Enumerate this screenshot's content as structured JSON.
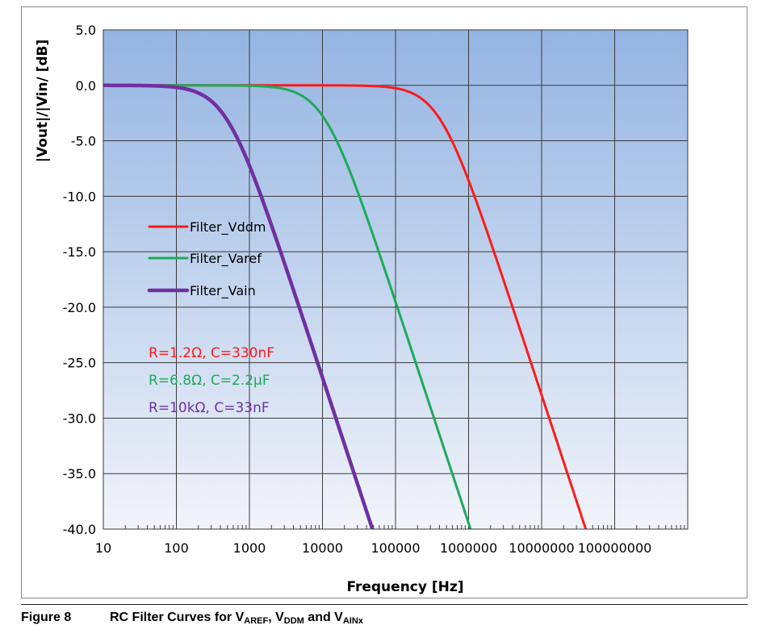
{
  "chart_data": {
    "type": "line",
    "xscale": "log",
    "xlabel": "Frequency [Hz]",
    "ylabel": "|Vout|/|Vin/ [dB]",
    "xlim": [
      10,
      1000000000
    ],
    "ylim": [
      -40,
      5
    ],
    "x_ticks": [
      10,
      100,
      1000,
      10000,
      100000,
      1000000,
      10000000,
      100000000
    ],
    "x_tick_labels": [
      "10",
      "100",
      "1000",
      "10000",
      "100000",
      "1000000",
      "10000000",
      "100000000"
    ],
    "y_ticks": [
      5,
      0,
      -5,
      -10,
      -15,
      -20,
      -25,
      -30,
      -35,
      -40
    ],
    "y_tick_labels": [
      "5.0",
      "0.0",
      "-5.0",
      "-10.0",
      "-15.0",
      "-20.0",
      "-25.0",
      "-30.0",
      "-35.0",
      "-40.0"
    ],
    "grid": true,
    "legend_position": "middle-left",
    "series": [
      {
        "name": "Filter_Vddm",
        "color": "#ff1a1a",
        "line_weight": "medium",
        "model": "rc_lowpass",
        "cutoff_hz": 401900,
        "x": [
          10,
          1000,
          100000,
          401900,
          1000000,
          10000000,
          40000000
        ],
        "values": [
          0.0,
          0.0,
          -0.25,
          -3.0,
          -8.6,
          -27.9,
          -40.0
        ]
      },
      {
        "name": "Filter_Varef",
        "color": "#1daa5a",
        "line_weight": "medium",
        "model": "rc_lowpass",
        "cutoff_hz": 10640,
        "x": [
          10,
          1000,
          10640,
          100000,
          1000000,
          1070000
        ],
        "values": [
          0.0,
          -0.04,
          -3.0,
          -19.5,
          -39.5,
          -40.0
        ]
      },
      {
        "name": "Filter_Vain",
        "color": "#7030a0",
        "line_weight": "thick",
        "model": "rc_lowpass",
        "cutoff_hz": 482.3,
        "x": [
          10,
          100,
          482.3,
          1000,
          10000,
          48000
        ],
        "values": [
          0.0,
          -0.19,
          -3.0,
          -7.2,
          -26.3,
          -40.0
        ]
      }
    ],
    "annotations": [
      {
        "text": "R=1.2Ω, C=330nF",
        "color": "#ff1a1a"
      },
      {
        "text": "R=6.8Ω, C=2.2µF",
        "color": "#1daa5a"
      },
      {
        "text": "R=10kΩ, C=33nF",
        "color": "#7030a0"
      }
    ]
  },
  "caption": {
    "figure_number": "Figure 8",
    "text_prefix": "RC Filter Curves for V",
    "sub1": "AREF",
    "sep1": ", V",
    "sub2": "DDM",
    "sep2": " and V",
    "sub3": "AINx"
  },
  "colors": {
    "plot_bg_top": "#94b4e2",
    "plot_bg_bottom": "#f1f4fa",
    "grid": "#3a3a3a"
  }
}
